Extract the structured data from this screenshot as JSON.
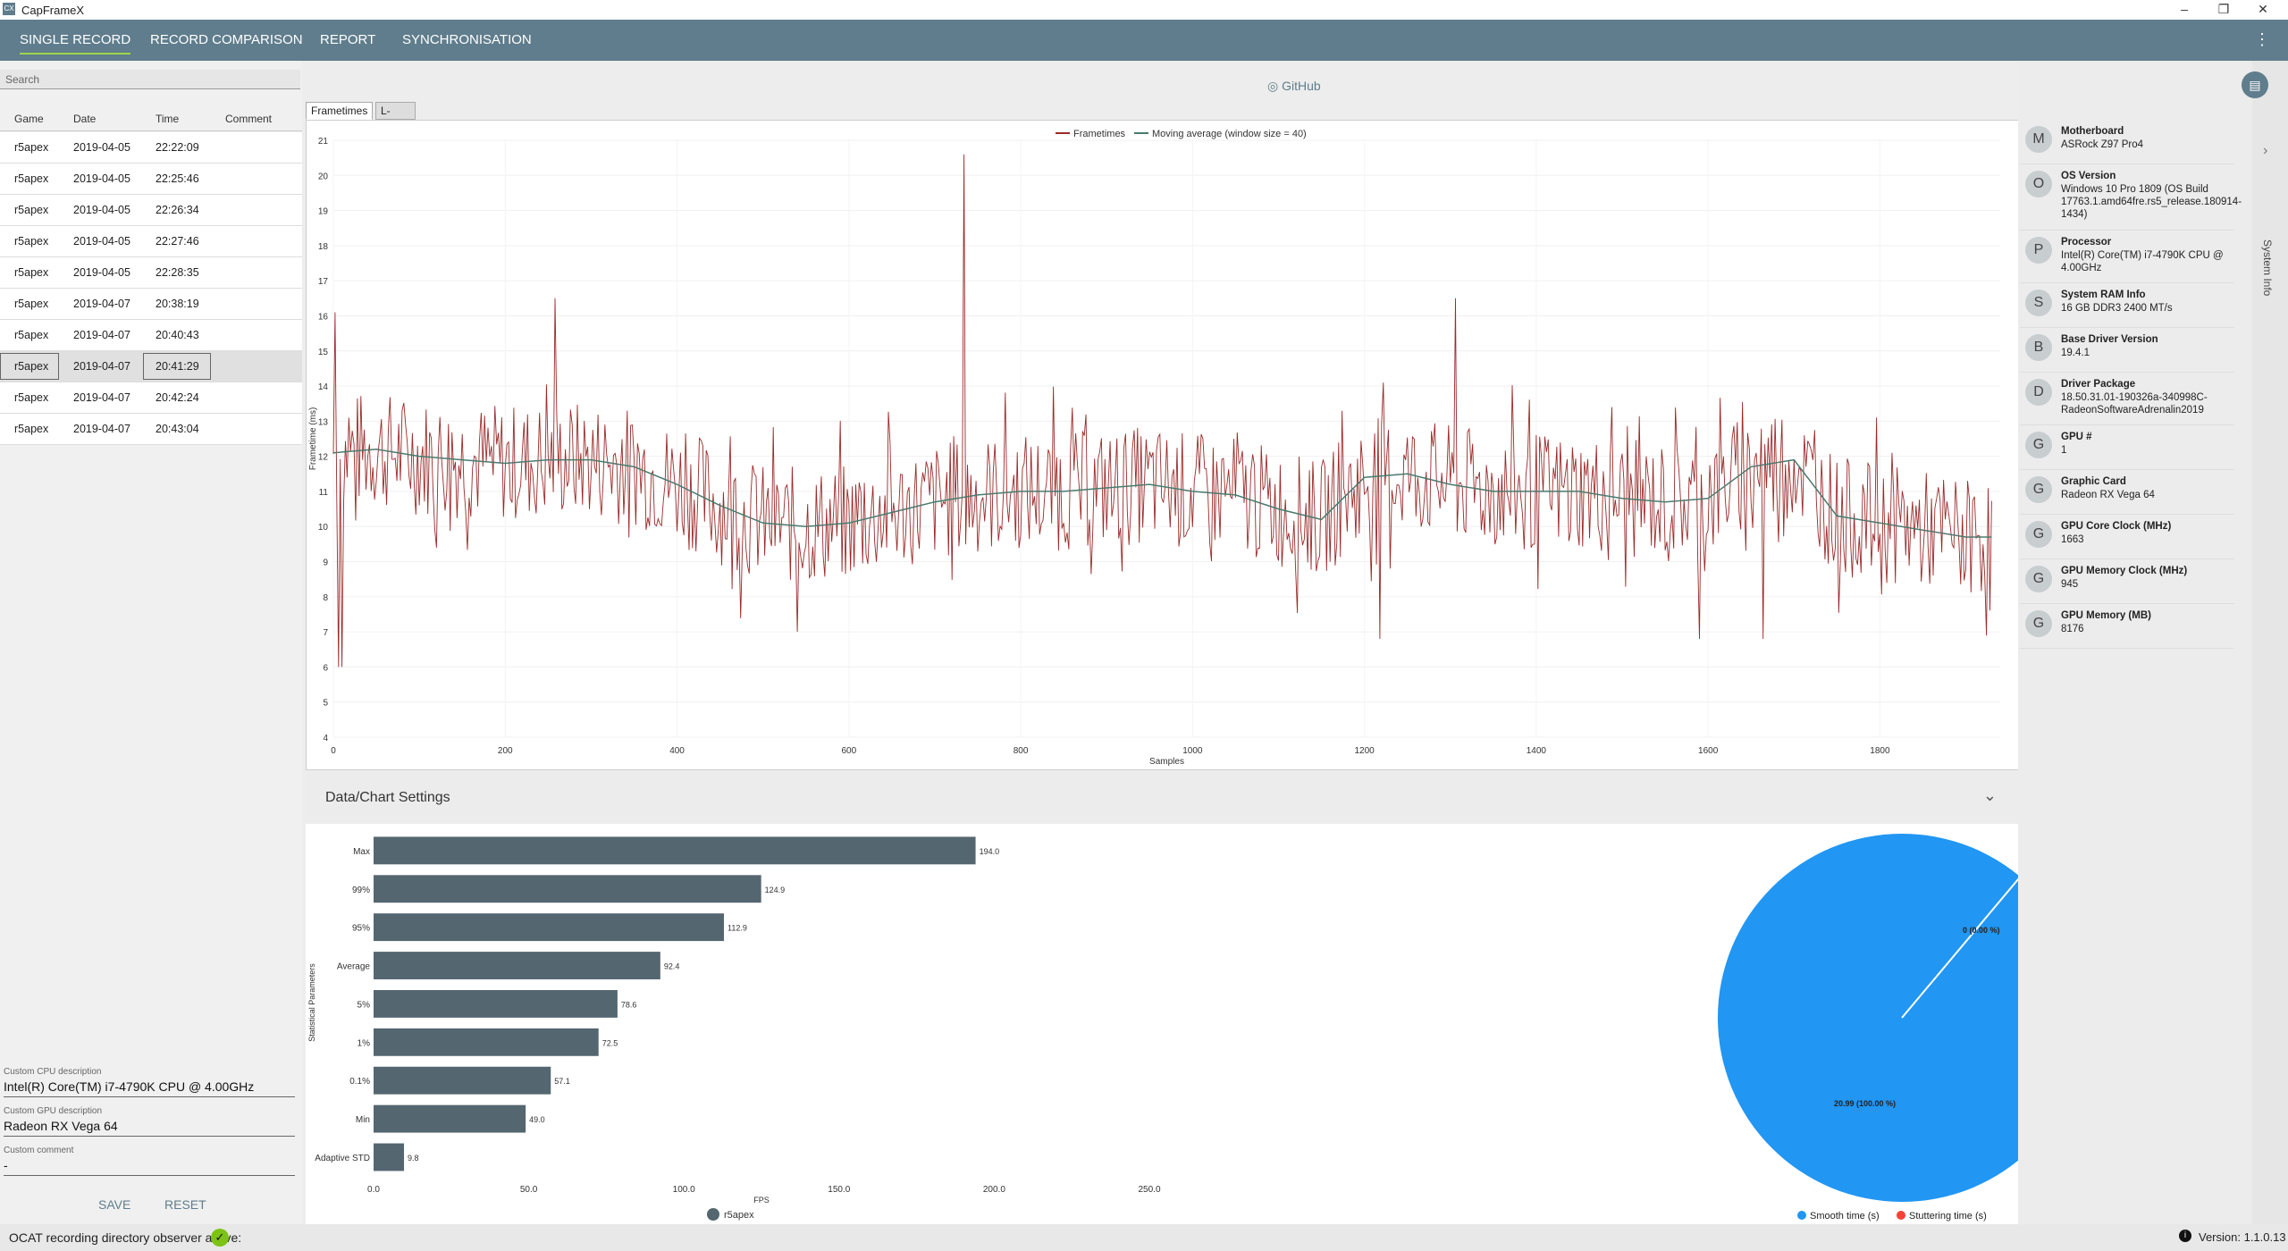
{
  "app": {
    "title": "CapFrameX",
    "icon_text": "CX"
  },
  "nav": {
    "tabs": [
      "SINGLE RECORD",
      "RECORD COMPARISON",
      "REPORT",
      "SYNCHRONISATION"
    ],
    "active": "SINGLE RECORD"
  },
  "window_controls": {
    "minimize": "–",
    "restore": "❐",
    "close": "✕"
  },
  "search": {
    "placeholder": "Search"
  },
  "records": {
    "headers": [
      "Game",
      "Date",
      "Time",
      "Comment"
    ],
    "rows": [
      {
        "game": "r5apex",
        "date": "2019-04-05",
        "time": "22:22:09",
        "comment": ""
      },
      {
        "game": "r5apex",
        "date": "2019-04-05",
        "time": "22:25:46",
        "comment": ""
      },
      {
        "game": "r5apex",
        "date": "2019-04-05",
        "time": "22:26:34",
        "comment": ""
      },
      {
        "game": "r5apex",
        "date": "2019-04-05",
        "time": "22:27:46",
        "comment": ""
      },
      {
        "game": "r5apex",
        "date": "2019-04-05",
        "time": "22:28:35",
        "comment": ""
      },
      {
        "game": "r5apex",
        "date": "2019-04-07",
        "time": "20:38:19",
        "comment": ""
      },
      {
        "game": "r5apex",
        "date": "2019-04-07",
        "time": "20:40:43",
        "comment": ""
      },
      {
        "game": "r5apex",
        "date": "2019-04-07",
        "time": "20:41:29",
        "comment": ""
      },
      {
        "game": "r5apex",
        "date": "2019-04-07",
        "time": "20:42:24",
        "comment": ""
      },
      {
        "game": "r5apex",
        "date": "2019-04-07",
        "time": "20:43:04",
        "comment": ""
      }
    ],
    "selected_index": 7
  },
  "custom": {
    "cpu_label": "Custom CPU description",
    "cpu_value": "Intel(R) Core(TM) i7-4790K CPU @ 4.00GHz",
    "gpu_label": "Custom GPU description",
    "gpu_value": "Radeon RX Vega 64",
    "comment_label": "Custom comment",
    "comment_value": "-"
  },
  "buttons": {
    "save": "SAVE",
    "reset": "RESET"
  },
  "status": {
    "ocat": "OCAT recording directory observer active:",
    "version": "Version:  1.1.0.13"
  },
  "github": "GitHub",
  "chart_tabs": [
    "Frametimes",
    "L-shape"
  ],
  "settings_title": "Data/Chart Settings",
  "system_info_title": "System Info",
  "system_info": [
    {
      "initial": "M",
      "key": "Motherboard",
      "value": "ASRock Z97 Pro4"
    },
    {
      "initial": "O",
      "key": "OS Version",
      "value": "Windows 10 Pro 1809 (OS Build 17763.1.amd64fre.rs5_release.180914-1434)"
    },
    {
      "initial": "P",
      "key": "Processor",
      "value": "Intel(R) Core(TM) i7-4790K CPU @ 4.00GHz"
    },
    {
      "initial": "S",
      "key": "System RAM Info",
      "value": "16 GB DDR3 2400 MT/s"
    },
    {
      "initial": "B",
      "key": "Base Driver Version",
      "value": "19.4.1"
    },
    {
      "initial": "D",
      "key": "Driver Package",
      "value": "18.50.31.01-190326a-340998C-RadeonSoftwareAdrenalin2019"
    },
    {
      "initial": "G",
      "key": "GPU #",
      "value": "1"
    },
    {
      "initial": "G",
      "key": "Graphic Card",
      "value": "Radeon RX Vega 64"
    },
    {
      "initial": "G",
      "key": "GPU Core Clock (MHz)",
      "value": "1663"
    },
    {
      "initial": "G",
      "key": "GPU Memory Clock (MHz)",
      "value": "945"
    },
    {
      "initial": "G",
      "key": "GPU Memory (MB)",
      "value": "8176"
    }
  ],
  "chart_data": [
    {
      "type": "line",
      "xlabel": "Samples",
      "ylabel": "Frametime (ms)",
      "xlim": [
        0,
        1940
      ],
      "ylim": [
        4,
        21
      ],
      "xticks": [
        0,
        200,
        400,
        600,
        800,
        1000,
        1200,
        1400,
        1600,
        1800
      ],
      "yticks": [
        4,
        5,
        6,
        7,
        8,
        9,
        10,
        11,
        12,
        13,
        14,
        15,
        16,
        17,
        18,
        19,
        20,
        21
      ],
      "legend": [
        "Frametimes",
        "Moving average (window size = 40)"
      ],
      "colors": {
        "frametimes": "#9b2a2a",
        "moving_average": "#4a7a6e"
      },
      "moving_average": {
        "x": [
          0,
          50,
          100,
          150,
          200,
          250,
          300,
          350,
          400,
          450,
          500,
          550,
          600,
          650,
          700,
          750,
          800,
          850,
          900,
          950,
          1000,
          1050,
          1100,
          1150,
          1200,
          1250,
          1300,
          1350,
          1400,
          1450,
          1500,
          1550,
          1600,
          1650,
          1700,
          1750,
          1800,
          1850,
          1900,
          1930
        ],
        "y": [
          12.1,
          12.2,
          12.0,
          11.9,
          11.8,
          11.9,
          11.9,
          11.7,
          11.2,
          10.6,
          10.1,
          10.0,
          10.1,
          10.4,
          10.7,
          10.9,
          11.0,
          11.0,
          11.1,
          11.2,
          11.0,
          10.9,
          10.5,
          10.2,
          11.4,
          11.5,
          11.2,
          11.0,
          11.0,
          11.0,
          10.8,
          10.7,
          10.8,
          11.7,
          11.9,
          10.3,
          10.1,
          9.9,
          9.7,
          9.7
        ]
      },
      "spikes": {
        "x": [
          2,
          6,
          10,
          258,
          541,
          629,
          734,
          983,
          1218,
          1306,
          1645,
          1653,
          1669
        ],
        "y": [
          16.1,
          15.4,
          6.0,
          16.5,
          7.0,
          6.5,
          20.6,
          17.1,
          16.5,
          16.5,
          15.2,
          13.8,
          16.5
        ]
      },
      "dips": {
        "x": [
          6,
          540,
          629,
          739,
          985,
          1218,
          1590,
          1664,
          1787
        ],
        "y": [
          6.0,
          7.0,
          6.5,
          5.4,
          5.1,
          6.8,
          6.8,
          6.8,
          6.3
        ]
      }
    },
    {
      "type": "bar",
      "orientation": "horizontal",
      "xlabel": "FPS",
      "ylabel": "Statistical Parameters",
      "xlim": [
        0,
        250
      ],
      "xticks": [
        0.0,
        50.0,
        100.0,
        150.0,
        200.0,
        250.0
      ],
      "categories": [
        "Max",
        "99%",
        "95%",
        "Average",
        "5%",
        "1%",
        "0.1%",
        "Min",
        "Adaptive STD"
      ],
      "values": [
        194.0,
        124.9,
        112.9,
        92.4,
        78.6,
        72.5,
        57.1,
        49.0,
        9.8
      ],
      "legend": [
        "r5apex"
      ],
      "colors": {
        "bar": "#546670"
      }
    },
    {
      "type": "pie",
      "slices": [
        {
          "label": "Smooth time (s)",
          "value": 20.99,
          "text": "20.99 (100.00 %)",
          "color": "#2196f3"
        },
        {
          "label": "Stuttering time (s)",
          "value": 0,
          "text": "0 (0.00 %)",
          "color": "#f44336"
        }
      ]
    }
  ]
}
